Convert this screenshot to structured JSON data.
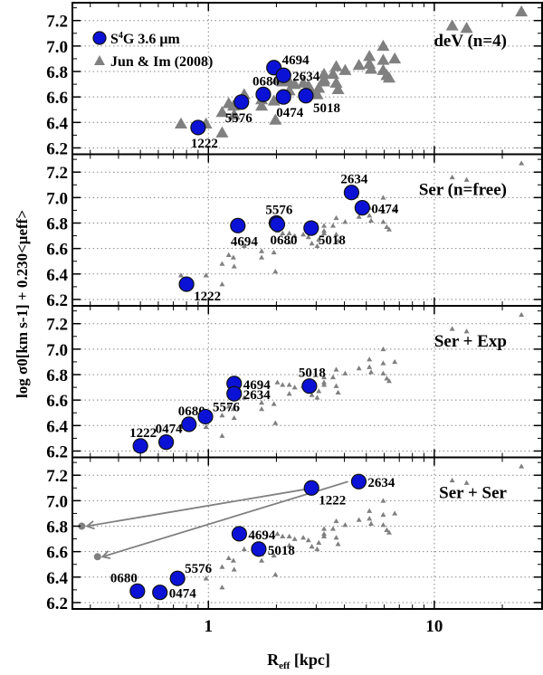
{
  "chart_data": {
    "type": "scatter",
    "xlabel": "R",
    "xlabel_sub": "eff",
    "xlabel_unit": " [kpc]",
    "ylabel": "log σ0[km s-1] + 0.230<μeff>",
    "xscale": "log",
    "xlim": [
      0.25,
      30
    ],
    "ylim": [
      6.15,
      7.34
    ],
    "xticks": [
      {
        "v": 1,
        "label": "1"
      },
      {
        "v": 10,
        "label": "10"
      }
    ],
    "yticks": [
      {
        "v": 7.2,
        "label": "7.2"
      },
      {
        "v": 7.0,
        "label": "7.0"
      },
      {
        "v": 6.8,
        "label": "6.8"
      },
      {
        "v": 6.6,
        "label": "6.6"
      },
      {
        "v": 6.4,
        "label": "6.4"
      },
      {
        "v": 6.2,
        "label": "6.2"
      }
    ],
    "grid": true,
    "legend": {
      "placement": "top-left",
      "entries": [
        {
          "marker": "circle",
          "label_pre": "S",
          "label_sup": "4",
          "label_post": "G 3.6 μm"
        },
        {
          "marker": "triangle",
          "label": "Jun & Im (2008)"
        }
      ]
    },
    "colors": {
      "s4g": "#0b12d6",
      "jun": "#808080",
      "arrow": "#808080"
    },
    "reference_points": [
      [
        0.756,
        6.39
      ],
      [
        0.976,
        6.39
      ],
      [
        1.15,
        6.32
      ],
      [
        1.15,
        6.48
      ],
      [
        1.23,
        6.55
      ],
      [
        1.29,
        6.53
      ],
      [
        1.3,
        6.46
      ],
      [
        1.44,
        6.62
      ],
      [
        1.72,
        6.53
      ],
      [
        1.72,
        6.58
      ],
      [
        1.95,
        6.57
      ],
      [
        1.98,
        6.42
      ],
      [
        2.02,
        6.74
      ],
      [
        2.13,
        6.72
      ],
      [
        2.28,
        6.65
      ],
      [
        2.28,
        6.72
      ],
      [
        2.41,
        6.7
      ],
      [
        2.63,
        6.71
      ],
      [
        2.77,
        6.69
      ],
      [
        2.87,
        6.64
      ],
      [
        3.03,
        6.62
      ],
      [
        3.08,
        6.67
      ],
      [
        3.25,
        6.72
      ],
      [
        3.25,
        6.78
      ],
      [
        3.25,
        6.74
      ],
      [
        3.56,
        6.78
      ],
      [
        3.68,
        6.84
      ],
      [
        3.68,
        6.71
      ],
      [
        3.75,
        6.66
      ],
      [
        4.03,
        6.81
      ],
      [
        4.64,
        6.85
      ],
      [
        5.16,
        6.92
      ],
      [
        5.16,
        6.86
      ],
      [
        5.25,
        6.82
      ],
      [
        5.94,
        7.0
      ],
      [
        5.94,
        6.89
      ],
      [
        5.94,
        6.81
      ],
      [
        6.16,
        6.77
      ],
      [
        6.31,
        6.75
      ],
      [
        6.68,
        6.9
      ],
      [
        12.0,
        7.16
      ],
      [
        13.9,
        7.14
      ],
      [
        24.3,
        7.27
      ]
    ],
    "panels": [
      {
        "title": "deV (n=4)",
        "ref_size": "large",
        "points": [
          {
            "id": "1222",
            "x": 0.9,
            "y": 6.36,
            "label_pos": "below"
          },
          {
            "id": "5576",
            "x": 1.4,
            "y": 6.56,
            "label_pos": "below-left"
          },
          {
            "id": "0680",
            "x": 1.75,
            "y": 6.62,
            "label_pos": "above"
          },
          {
            "id": "4694",
            "x": 1.95,
            "y": 6.83,
            "label_pos": "right-up"
          },
          {
            "id": "2634",
            "x": 2.15,
            "y": 6.77,
            "label_pos": "right"
          },
          {
            "id": "0474",
            "x": 2.15,
            "y": 6.6,
            "label_pos": "below"
          },
          {
            "id": "5018",
            "x": 2.7,
            "y": 6.61,
            "label_pos": "below-right"
          }
        ]
      },
      {
        "title": "Ser (n=free)",
        "ref_size": "small",
        "points": [
          {
            "id": "1222",
            "x": 0.8,
            "y": 6.32,
            "label_pos": "below-right"
          },
          {
            "id": "4694",
            "x": 1.35,
            "y": 6.78,
            "label_pos": "below"
          },
          {
            "id": "5576",
            "x": 2.0,
            "y": 6.8,
            "label_pos": "above"
          },
          {
            "id": "0680",
            "x": 2.02,
            "y": 6.79,
            "label_pos": "below"
          },
          {
            "id": "5018",
            "x": 2.85,
            "y": 6.76,
            "label_pos": "below-right"
          },
          {
            "id": "2634",
            "x": 4.3,
            "y": 7.04,
            "label_pos": "above"
          },
          {
            "id": "0474",
            "x": 4.8,
            "y": 6.92,
            "label_pos": "right"
          }
        ]
      },
      {
        "title": "Ser + Exp",
        "ref_size": "small",
        "points": [
          {
            "id": "1222",
            "x": 0.5,
            "y": 6.24,
            "label_pos": "above"
          },
          {
            "id": "0474",
            "x": 0.65,
            "y": 6.27,
            "label_pos": "above"
          },
          {
            "id": "0680",
            "x": 0.82,
            "y": 6.41,
            "label_pos": "above"
          },
          {
            "id": "5576",
            "x": 0.97,
            "y": 6.47,
            "label_pos": "above-right"
          },
          {
            "id": "4694",
            "x": 1.3,
            "y": 6.73,
            "label_pos": "right"
          },
          {
            "id": "2634",
            "x": 1.3,
            "y": 6.65,
            "label_pos": "right"
          },
          {
            "id": "5018",
            "x": 2.8,
            "y": 6.71,
            "label_pos": "above"
          }
        ]
      },
      {
        "title": "Ser + Ser",
        "ref_size": "small",
        "points": [
          {
            "id": "0680",
            "x": 0.485,
            "y": 6.29,
            "label_pos": "above-left"
          },
          {
            "id": "0474",
            "x": 0.61,
            "y": 6.28,
            "label_pos": "right"
          },
          {
            "id": "5576",
            "x": 0.73,
            "y": 6.39,
            "label_pos": "above-right"
          },
          {
            "id": "4694",
            "x": 1.37,
            "y": 6.74,
            "label_pos": "right"
          },
          {
            "id": "5018",
            "x": 1.67,
            "y": 6.62,
            "label_pos": "right"
          },
          {
            "id": "1222",
            "x": 2.86,
            "y": 7.1,
            "label_pos": "below-right"
          },
          {
            "id": "2634",
            "x": 4.63,
            "y": 7.15,
            "label_pos": "right"
          }
        ],
        "inner_components": [
          {
            "x": 0.275,
            "y": 6.8
          },
          {
            "x": 0.323,
            "y": 6.56
          }
        ],
        "arrows": [
          {
            "from": [
              2.7,
              7.09
            ],
            "to": [
              0.29,
              6.8
            ]
          },
          {
            "from": [
              4.15,
              7.15
            ],
            "to": [
              0.34,
              6.56
            ]
          }
        ]
      }
    ]
  }
}
